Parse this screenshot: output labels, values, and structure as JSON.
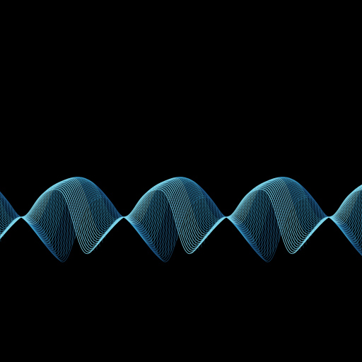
{
  "scene": {
    "subject": "wireframe-sine-ribbon",
    "background_color": "#000000",
    "wave_colors": {
      "bright": "#7fd6ea",
      "mid": "#3a9bc9",
      "deep": "#1f5e93"
    },
    "wave_style": "twisting-wireframe-ribbon",
    "lobe_count": 4
  }
}
